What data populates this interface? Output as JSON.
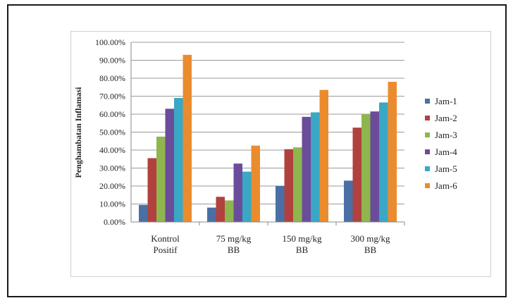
{
  "chart_data": {
    "type": "bar",
    "title": "",
    "xlabel": "",
    "ylabel": "Penghambatan Inflamasi",
    "ylim": [
      0,
      100
    ],
    "yticks": [
      "0.00%",
      "10.00%",
      "20.00%",
      "30.00%",
      "40.00%",
      "50.00%",
      "60.00%",
      "70.00%",
      "80.00%",
      "90.00%",
      "100.00%"
    ],
    "categories": [
      [
        "Kontrol",
        "Positif"
      ],
      [
        "75 mg/kg",
        "BB"
      ],
      [
        "150 mg/kg",
        "BB"
      ],
      [
        "300 mg/kg",
        "BB"
      ]
    ],
    "series": [
      {
        "name": "Jam-1",
        "color": "#4a6fa5",
        "values": [
          9.5,
          8.0,
          20.0,
          23.0
        ]
      },
      {
        "name": "Jam-2",
        "color": "#b0413e",
        "values": [
          35.5,
          14.0,
          40.5,
          52.5
        ]
      },
      {
        "name": "Jam-3",
        "color": "#8fb64e",
        "values": [
          47.5,
          12.0,
          41.5,
          60.0
        ]
      },
      {
        "name": "Jam-4",
        "color": "#6b4c9a",
        "values": [
          63.0,
          32.5,
          58.5,
          61.5
        ]
      },
      {
        "name": "Jam-5",
        "color": "#3aa7c4",
        "values": [
          69.0,
          28.0,
          61.0,
          66.5
        ]
      },
      {
        "name": "Jam-6",
        "color": "#ea8c2e",
        "values": [
          93.0,
          42.5,
          73.5,
          78.0
        ]
      }
    ],
    "grid": true,
    "legend": "right"
  }
}
